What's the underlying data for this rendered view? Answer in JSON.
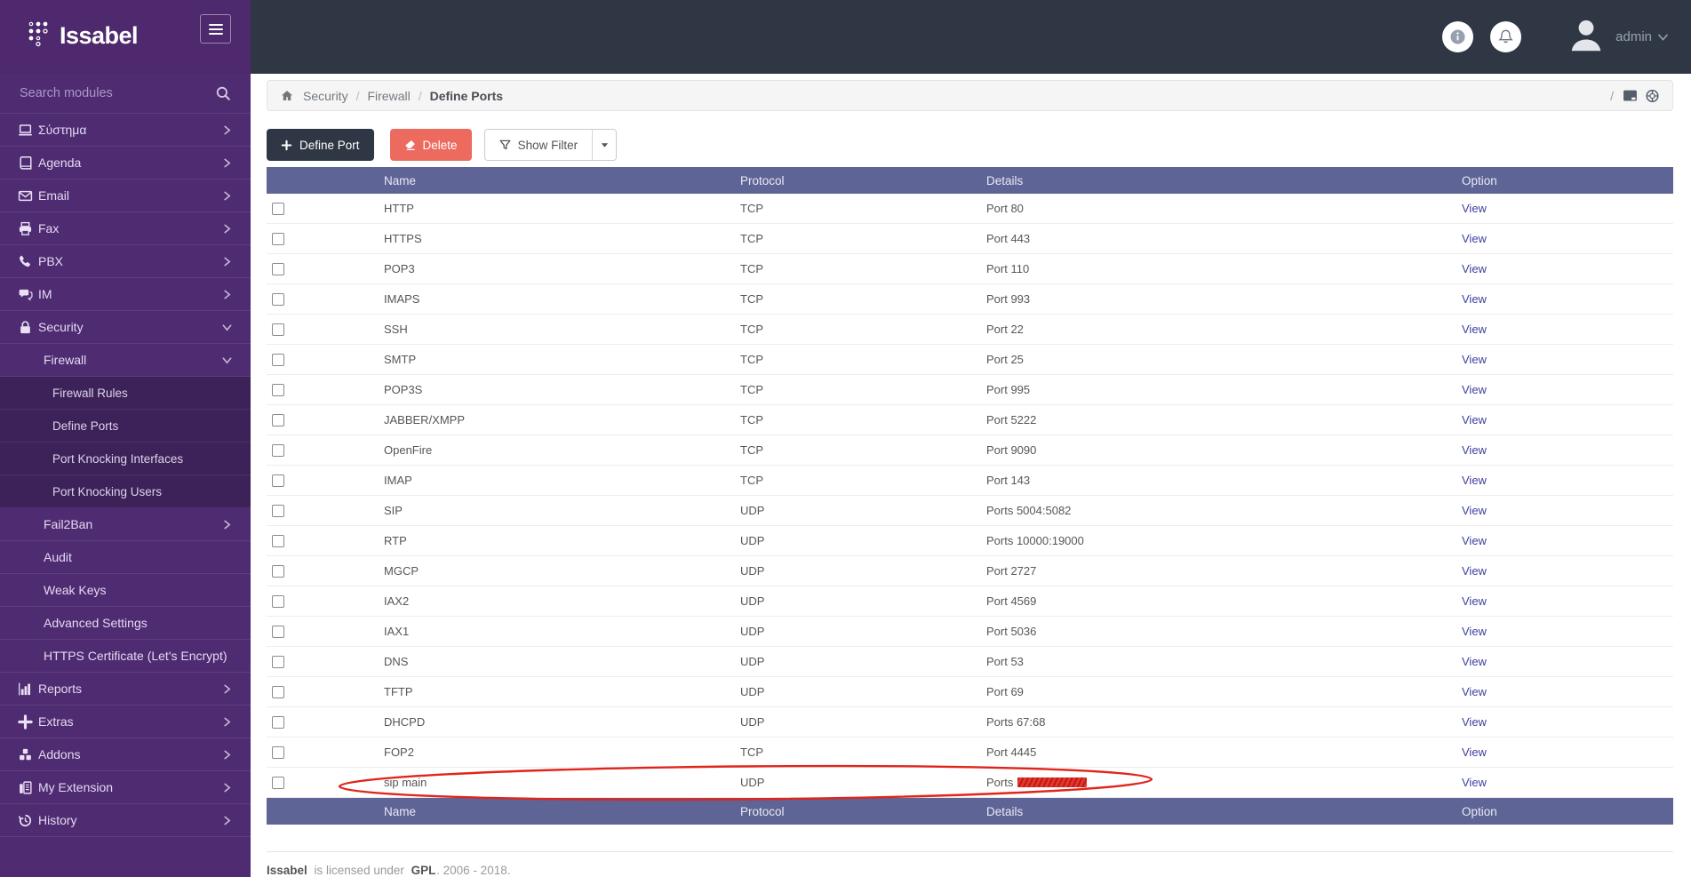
{
  "brand": {
    "name": "Issabel"
  },
  "topbar": {
    "user": "admin"
  },
  "sidebar": {
    "search_placeholder": "Search modules",
    "items": [
      {
        "key": "system",
        "label": "Σύστημα",
        "icon": "laptop",
        "level": 1,
        "chevron": "right"
      },
      {
        "key": "agenda",
        "label": "Agenda",
        "icon": "book",
        "level": 1,
        "chevron": "right"
      },
      {
        "key": "email",
        "label": "Email",
        "icon": "envelope",
        "level": 1,
        "chevron": "right"
      },
      {
        "key": "fax",
        "label": "Fax",
        "icon": "printer",
        "level": 1,
        "chevron": "right"
      },
      {
        "key": "pbx",
        "label": "PBX",
        "icon": "phone",
        "level": 1,
        "chevron": "right"
      },
      {
        "key": "im",
        "label": "IM",
        "icon": "chat",
        "level": 1,
        "chevron": "right"
      },
      {
        "key": "security",
        "label": "Security",
        "icon": "lock",
        "level": 1,
        "chevron": "down"
      },
      {
        "key": "firewall",
        "label": "Firewall",
        "icon": null,
        "level": 2,
        "chevron": "down"
      },
      {
        "key": "firewall-rules",
        "label": "Firewall Rules",
        "icon": null,
        "level": 3,
        "chevron": null
      },
      {
        "key": "define-ports",
        "label": "Define Ports",
        "icon": null,
        "level": 3,
        "chevron": null,
        "active": true
      },
      {
        "key": "port-knocking-interfaces",
        "label": "Port Knocking Interfaces",
        "icon": null,
        "level": 3,
        "chevron": null
      },
      {
        "key": "port-knocking-users",
        "label": "Port Knocking Users",
        "icon": null,
        "level": 3,
        "chevron": null
      },
      {
        "key": "fail2ban",
        "label": "Fail2Ban",
        "icon": null,
        "level": 2,
        "chevron": "right"
      },
      {
        "key": "audit",
        "label": "Audit",
        "icon": null,
        "level": 2,
        "chevron": null
      },
      {
        "key": "weak-keys",
        "label": "Weak Keys",
        "icon": null,
        "level": 2,
        "chevron": null
      },
      {
        "key": "advanced-settings",
        "label": "Advanced Settings",
        "icon": null,
        "level": 2,
        "chevron": null
      },
      {
        "key": "https-certificate",
        "label": "HTTPS Certificate (Let's Encrypt)",
        "icon": null,
        "level": 2,
        "chevron": null
      },
      {
        "key": "reports",
        "label": "Reports",
        "icon": "chart",
        "level": 1,
        "chevron": "right"
      },
      {
        "key": "extras",
        "label": "Extras",
        "icon": "plus",
        "level": 1,
        "chevron": "right"
      },
      {
        "key": "addons",
        "label": "Addons",
        "icon": "cubes",
        "level": 1,
        "chevron": "right"
      },
      {
        "key": "my-extension",
        "label": "My Extension",
        "icon": "fax",
        "level": 1,
        "chevron": "right"
      },
      {
        "key": "history",
        "label": "History",
        "icon": "history",
        "level": 1,
        "chevron": "right"
      }
    ]
  },
  "breadcrumb": {
    "items": [
      "Security",
      "Firewall",
      "Define Ports"
    ],
    "right_separator": "/"
  },
  "toolbar": {
    "define_port": "Define Port",
    "delete": "Delete",
    "show_filter": "Show Filter"
  },
  "table": {
    "columns": [
      "Name",
      "Protocol",
      "Details",
      "Option"
    ],
    "rows": [
      {
        "name": "HTTP",
        "protocol": "TCP",
        "details": "Port 80",
        "option": "View"
      },
      {
        "name": "HTTPS",
        "protocol": "TCP",
        "details": "Port 443",
        "option": "View"
      },
      {
        "name": "POP3",
        "protocol": "TCP",
        "details": "Port 110",
        "option": "View"
      },
      {
        "name": "IMAPS",
        "protocol": "TCP",
        "details": "Port 993",
        "option": "View"
      },
      {
        "name": "SSH",
        "protocol": "TCP",
        "details": "Port 22",
        "option": "View"
      },
      {
        "name": "SMTP",
        "protocol": "TCP",
        "details": "Port 25",
        "option": "View"
      },
      {
        "name": "POP3S",
        "protocol": "TCP",
        "details": "Port 995",
        "option": "View"
      },
      {
        "name": "JABBER/XMPP",
        "protocol": "TCP",
        "details": "Port 5222",
        "option": "View"
      },
      {
        "name": "OpenFire",
        "protocol": "TCP",
        "details": "Port 9090",
        "option": "View"
      },
      {
        "name": "IMAP",
        "protocol": "TCP",
        "details": "Port 143",
        "option": "View"
      },
      {
        "name": "SIP",
        "protocol": "UDP",
        "details": "Ports 5004:5082",
        "option": "View"
      },
      {
        "name": "RTP",
        "protocol": "UDP",
        "details": "Ports 10000:19000",
        "option": "View"
      },
      {
        "name": "MGCP",
        "protocol": "UDP",
        "details": "Port 2727",
        "option": "View"
      },
      {
        "name": "IAX2",
        "protocol": "UDP",
        "details": "Port 4569",
        "option": "View"
      },
      {
        "name": "IAX1",
        "protocol": "UDP",
        "details": "Port 5036",
        "option": "View"
      },
      {
        "name": "DNS",
        "protocol": "UDP",
        "details": "Port 53",
        "option": "View"
      },
      {
        "name": "TFTP",
        "protocol": "UDP",
        "details": "Port 69",
        "option": "View"
      },
      {
        "name": "DHCPD",
        "protocol": "UDP",
        "details": "Ports 67:68",
        "option": "View"
      },
      {
        "name": "FOP2",
        "protocol": "TCP",
        "details": "Port 4445",
        "option": "View"
      },
      {
        "name": "sip main",
        "protocol": "UDP",
        "details": "Ports",
        "option": "View",
        "redacted": true
      }
    ]
  },
  "footer": {
    "brand": "Issabel",
    "text": "is licensed under",
    "license": "GPL",
    "years": ". 2006 - 2018."
  },
  "colors": {
    "sidebar": "#4f2b72",
    "sidebar_submenu": "#3d2259",
    "topbar": "#2f3744",
    "table_header": "#5e6495",
    "delete_button": "#ed6a5e",
    "define_button": "#2f3744",
    "view_link": "#3f419d",
    "annotation": "#e0251b",
    "redaction": "#e8342a"
  }
}
